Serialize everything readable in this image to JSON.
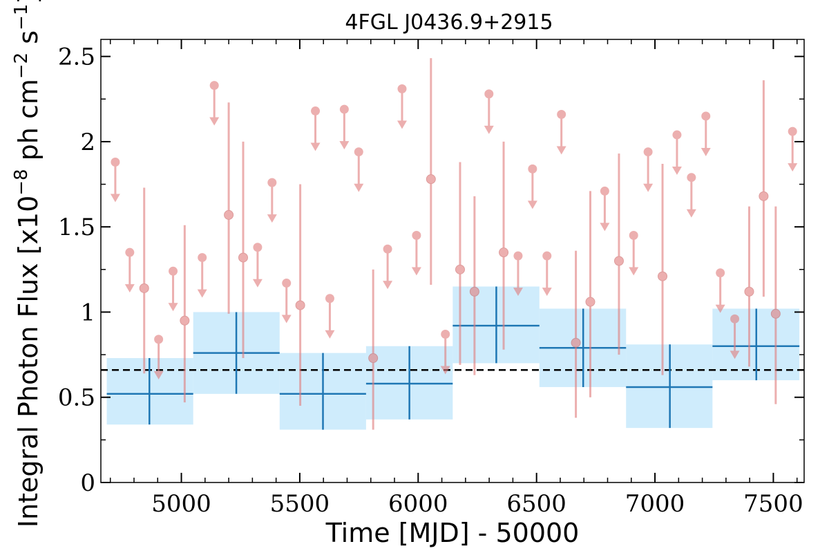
{
  "chart_data": {
    "type": "scatter",
    "title": "4FGL J0436.9+2915",
    "xlabel": "Time [MJD] - 50000",
    "ylabel": "Integral Photon Flux [x10^-8 ph cm^-2 s^-1]",
    "ylabel_parts": {
      "prefix": "Integral Photon Flux [x10",
      "exp1": "−8",
      "mid": " ph cm",
      "exp2": "−2",
      "mid2": " s",
      "exp3": "−1",
      "suffix": "]"
    },
    "xlim": [
      4660,
      7630
    ],
    "ylim": [
      0,
      2.6
    ],
    "x_ticks": [
      5000,
      5500,
      6000,
      6500,
      7000,
      7500
    ],
    "x_tick_labels": [
      "5000",
      "5500",
      "6000",
      "6500",
      "7000",
      "7500"
    ],
    "y_ticks": [
      0,
      0.5,
      1,
      1.5,
      2,
      2.5
    ],
    "y_tick_labels": [
      "0",
      "0.5",
      "1",
      "1.5",
      "2",
      "2.5"
    ],
    "grid": false,
    "colors": {
      "points": "#e07b7b",
      "bins_fill": "#bfe6fb",
      "bins_line": "#1f77b4",
      "mean_line": "#000000"
    },
    "mean_flux": 0.66,
    "binned_series": [
      {
        "x": 4865,
        "x_low": 4685,
        "x_high": 5050,
        "y": 0.52,
        "y_low": 0.34,
        "y_high": 0.73
      },
      {
        "x": 5232,
        "x_low": 5050,
        "x_high": 5415,
        "y": 0.76,
        "y_low": 0.52,
        "y_high": 1.0
      },
      {
        "x": 5598,
        "x_low": 5415,
        "x_high": 5780,
        "y": 0.52,
        "y_low": 0.31,
        "y_high": 0.76
      },
      {
        "x": 5963,
        "x_low": 5780,
        "x_high": 6146,
        "y": 0.58,
        "y_low": 0.37,
        "y_high": 0.8
      },
      {
        "x": 6330,
        "x_low": 6146,
        "x_high": 6512,
        "y": 0.92,
        "y_low": 0.7,
        "y_high": 1.15
      },
      {
        "x": 6697,
        "x_low": 6512,
        "x_high": 6878,
        "y": 0.79,
        "y_low": 0.56,
        "y_high": 1.02
      },
      {
        "x": 7063,
        "x_low": 6878,
        "x_high": 7243,
        "y": 0.56,
        "y_low": 0.32,
        "y_high": 0.81
      },
      {
        "x": 7428,
        "x_low": 7243,
        "x_high": 7610,
        "y": 0.8,
        "y_low": 0.6,
        "y_high": 1.02
      }
    ],
    "detections": [
      {
        "x": 4843,
        "y": 1.14,
        "y_low": 0.64,
        "y_high": 1.73
      },
      {
        "x": 5014,
        "y": 0.95,
        "y_low": 0.47,
        "y_high": 1.51
      },
      {
        "x": 5200,
        "y": 1.57,
        "y_low": 0.99,
        "y_high": 2.23
      },
      {
        "x": 5261,
        "y": 1.32,
        "y_low": 0.73,
        "y_high": 2.0
      },
      {
        "x": 5502,
        "y": 1.04,
        "y_low": 0.45,
        "y_high": 1.75
      },
      {
        "x": 5810,
        "y": 0.73,
        "y_low": 0.31,
        "y_high": 1.25
      },
      {
        "x": 6054,
        "y": 1.78,
        "y_low": 1.16,
        "y_high": 2.49
      },
      {
        "x": 6177,
        "y": 1.25,
        "y_low": 0.69,
        "y_high": 1.88
      },
      {
        "x": 6238,
        "y": 1.12,
        "y_low": 0.63,
        "y_high": 1.68
      },
      {
        "x": 6361,
        "y": 1.35,
        "y_low": 0.78,
        "y_high": 2.0
      },
      {
        "x": 6666,
        "y": 0.82,
        "y_low": 0.38,
        "y_high": 1.36
      },
      {
        "x": 6727,
        "y": 1.06,
        "y_low": 0.5,
        "y_high": 1.71
      },
      {
        "x": 6848,
        "y": 1.3,
        "y_low": 0.75,
        "y_high": 1.93
      },
      {
        "x": 7032,
        "y": 1.21,
        "y_low": 0.63,
        "y_high": 1.87
      },
      {
        "x": 7398,
        "y": 1.12,
        "y_low": 0.68,
        "y_high": 1.62
      },
      {
        "x": 7459,
        "y": 1.68,
        "y_low": 1.09,
        "y_high": 2.36
      },
      {
        "x": 7510,
        "y": 0.99,
        "y_low": 0.46,
        "y_high": 1.62
      }
    ],
    "upper_limits": [
      {
        "x": 4721,
        "y": 1.88
      },
      {
        "x": 4782,
        "y": 1.35
      },
      {
        "x": 4904,
        "y": 0.84
      },
      {
        "x": 4965,
        "y": 1.24
      },
      {
        "x": 5088,
        "y": 1.32
      },
      {
        "x": 5139,
        "y": 2.33
      },
      {
        "x": 5322,
        "y": 1.38
      },
      {
        "x": 5383,
        "y": 1.76
      },
      {
        "x": 5444,
        "y": 1.17
      },
      {
        "x": 5566,
        "y": 2.18
      },
      {
        "x": 5627,
        "y": 1.08
      },
      {
        "x": 5688,
        "y": 2.19
      },
      {
        "x": 5749,
        "y": 1.94
      },
      {
        "x": 5871,
        "y": 1.37
      },
      {
        "x": 5932,
        "y": 2.31
      },
      {
        "x": 5993,
        "y": 1.45
      },
      {
        "x": 6115,
        "y": 0.87
      },
      {
        "x": 6299,
        "y": 2.28
      },
      {
        "x": 6422,
        "y": 1.33
      },
      {
        "x": 6483,
        "y": 1.84
      },
      {
        "x": 6544,
        "y": 1.33
      },
      {
        "x": 6605,
        "y": 2.16
      },
      {
        "x": 6788,
        "y": 1.71
      },
      {
        "x": 6910,
        "y": 1.45
      },
      {
        "x": 6971,
        "y": 1.94
      },
      {
        "x": 7093,
        "y": 2.04
      },
      {
        "x": 7154,
        "y": 1.79
      },
      {
        "x": 7215,
        "y": 2.15
      },
      {
        "x": 7276,
        "y": 1.23
      },
      {
        "x": 7337,
        "y": 0.96
      },
      {
        "x": 7581,
        "y": 2.06
      }
    ]
  }
}
